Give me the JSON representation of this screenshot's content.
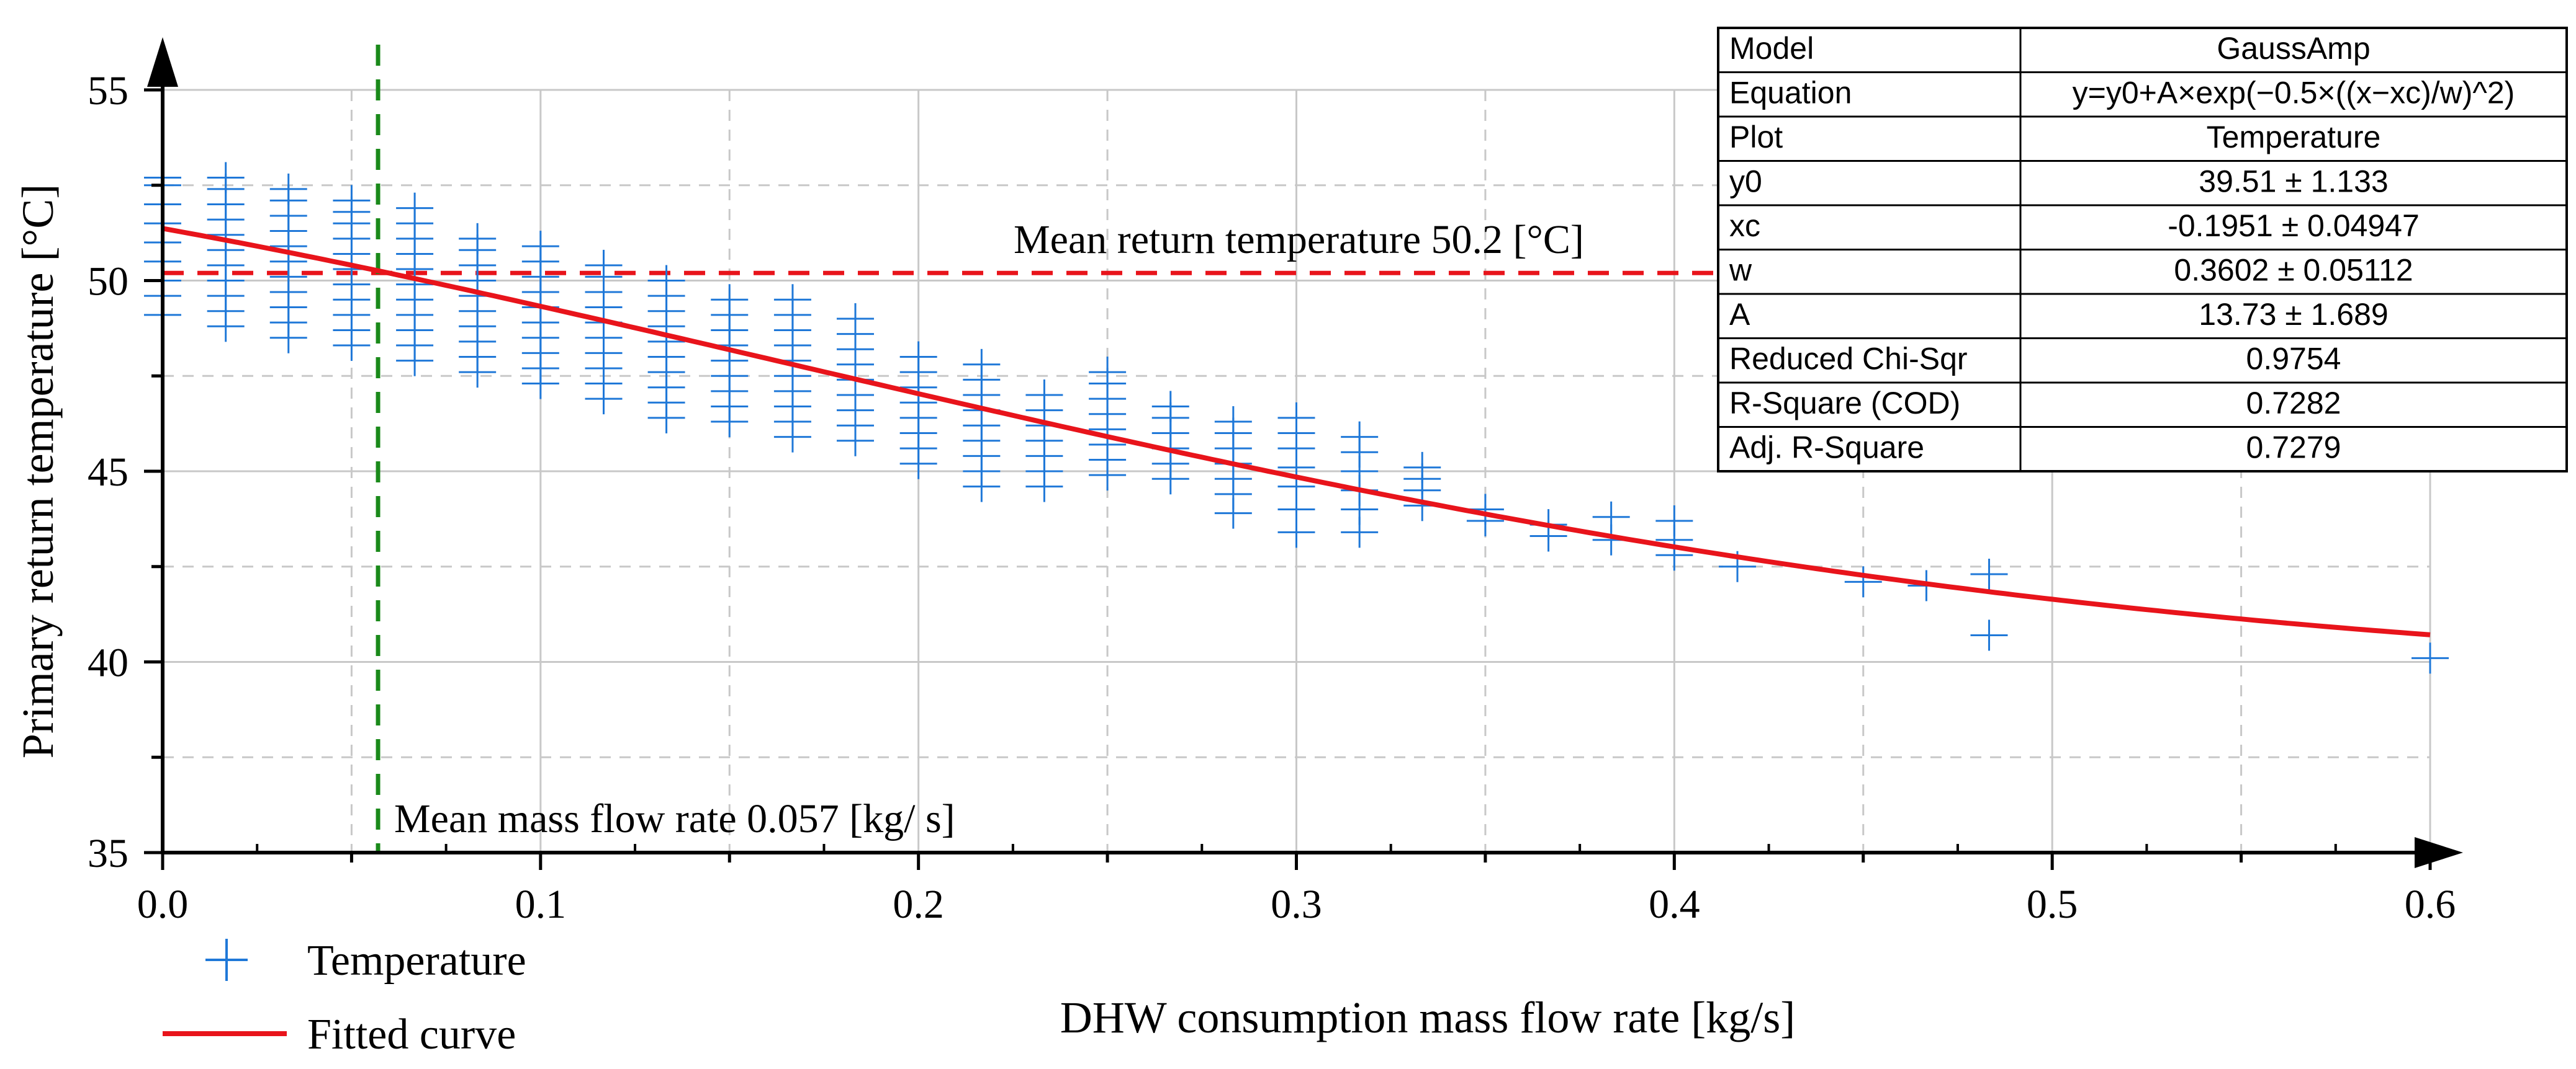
{
  "chart_data": {
    "type": "scatter",
    "xlabel": "DHW consumption mass flow rate [kg/s]",
    "ylabel": "Primary return temperature [°C]",
    "xlim": [
      0.0,
      0.6
    ],
    "ylim": [
      35,
      55
    ],
    "x_ticks": [
      "0.0",
      "0.1",
      "0.2",
      "0.3",
      "0.4",
      "0.5",
      "0.6"
    ],
    "y_ticks": [
      "35",
      "40",
      "45",
      "50",
      "55"
    ],
    "grid": true,
    "legend_position": "bottom-left",
    "series": [
      {
        "name": "Temperature",
        "kind": "scatter",
        "marker": "plus",
        "color": "#1f78d8",
        "points": [
          {
            "x": 0.0,
            "ys": [
              49.1,
              49.6,
              50.0,
              50.5,
              51.0,
              51.5,
              52.0,
              52.5,
              52.7
            ]
          },
          {
            "x": 0.0167,
            "ys": [
              48.8,
              49.2,
              49.6,
              50.0,
              50.4,
              50.8,
              51.2,
              51.6,
              52.0,
              52.4,
              52.7
            ]
          },
          {
            "x": 0.0333,
            "ys": [
              48.5,
              48.9,
              49.3,
              49.7,
              50.1,
              50.5,
              50.9,
              51.3,
              51.7,
              52.1,
              52.4
            ]
          },
          {
            "x": 0.05,
            "ys": [
              48.3,
              48.7,
              49.1,
              49.5,
              49.9,
              50.3,
              50.7,
              51.1,
              51.5,
              51.8,
              52.1
            ]
          },
          {
            "x": 0.0667,
            "ys": [
              47.9,
              48.3,
              48.7,
              49.1,
              49.5,
              49.9,
              50.3,
              50.7,
              51.1,
              51.5,
              51.9
            ]
          },
          {
            "x": 0.0833,
            "ys": [
              47.6,
              48.0,
              48.4,
              48.8,
              49.2,
              49.6,
              50.0,
              50.4,
              50.8,
              51.1
            ]
          },
          {
            "x": 0.1,
            "ys": [
              47.3,
              47.7,
              48.1,
              48.5,
              48.9,
              49.3,
              49.7,
              50.1,
              50.5,
              50.9
            ]
          },
          {
            "x": 0.1167,
            "ys": [
              46.9,
              47.3,
              47.7,
              48.1,
              48.5,
              48.9,
              49.3,
              49.7,
              50.1,
              50.4
            ]
          },
          {
            "x": 0.1333,
            "ys": [
              46.4,
              46.8,
              47.2,
              47.6,
              48.0,
              48.4,
              48.8,
              49.2,
              49.6,
              50.0
            ]
          },
          {
            "x": 0.15,
            "ys": [
              46.3,
              46.7,
              47.1,
              47.5,
              47.9,
              48.3,
              48.7,
              49.1,
              49.5
            ]
          },
          {
            "x": 0.1667,
            "ys": [
              45.9,
              46.3,
              46.7,
              47.1,
              47.5,
              47.9,
              48.3,
              48.7,
              49.1,
              49.5
            ]
          },
          {
            "x": 0.1833,
            "ys": [
              45.8,
              46.2,
              46.6,
              47.0,
              47.4,
              47.8,
              48.2,
              48.6,
              49.0
            ]
          },
          {
            "x": 0.2,
            "ys": [
              45.2,
              45.6,
              46.0,
              46.4,
              46.8,
              47.2,
              47.6,
              48.0
            ]
          },
          {
            "x": 0.2167,
            "ys": [
              44.6,
              45.0,
              45.4,
              45.8,
              46.2,
              46.6,
              47.0,
              47.4,
              47.8
            ]
          },
          {
            "x": 0.2333,
            "ys": [
              44.6,
              45.0,
              45.4,
              45.8,
              46.2,
              46.6,
              47.0
            ]
          },
          {
            "x": 0.25,
            "ys": [
              44.9,
              45.3,
              45.7,
              46.1,
              46.5,
              46.9,
              47.3,
              47.6
            ]
          },
          {
            "x": 0.2667,
            "ys": [
              44.8,
              45.2,
              45.6,
              46.0,
              46.4,
              46.7
            ]
          },
          {
            "x": 0.2833,
            "ys": [
              43.9,
              44.4,
              44.8,
              45.2,
              45.6,
              46.0,
              46.3
            ]
          },
          {
            "x": 0.3,
            "ys": [
              43.4,
              44.0,
              44.6,
              45.1,
              45.6,
              46.0,
              46.4
            ]
          },
          {
            "x": 0.3167,
            "ys": [
              43.4,
              44.0,
              44.5,
              45.0,
              45.5,
              45.9
            ]
          },
          {
            "x": 0.3333,
            "ys": [
              44.1,
              44.5,
              44.8,
              45.1
            ]
          },
          {
            "x": 0.35,
            "ys": [
              43.7,
              44.0
            ]
          },
          {
            "x": 0.3667,
            "ys": [
              43.3,
              43.6
            ]
          },
          {
            "x": 0.3833,
            "ys": [
              43.2,
              43.8
            ]
          },
          {
            "x": 0.4,
            "ys": [
              42.8,
              43.2,
              43.7
            ]
          },
          {
            "x": 0.4167,
            "ys": [
              42.5
            ]
          },
          {
            "x": 0.45,
            "ys": [
              42.1
            ]
          },
          {
            "x": 0.4667,
            "ys": [
              42.0
            ]
          },
          {
            "x": 0.4833,
            "ys": [
              40.7,
              42.3
            ]
          },
          {
            "x": 0.6,
            "ys": [
              40.1
            ]
          }
        ]
      },
      {
        "name": "Fitted curve",
        "kind": "line",
        "color": "#e8141b",
        "model": {
          "y0": 39.51,
          "xc": -0.1951,
          "w": 0.3602,
          "A": 13.73
        },
        "x_range": [
          0.0,
          0.6
        ]
      }
    ],
    "reference_lines": [
      {
        "orientation": "horizontal",
        "value": 50.2,
        "color": "#e8141b",
        "style": "dashed",
        "label": "Mean return temperature 50.2 [°C]"
      },
      {
        "orientation": "vertical",
        "value": 0.057,
        "color": "#1a8a1a",
        "style": "dashed",
        "label": "Mean mass flow rate 0.057 [kg/ s]"
      }
    ],
    "fit_table": [
      [
        "Model",
        "GaussAmp"
      ],
      [
        "Equation",
        "y=y0+A×exp(−0.5×((x−xc)/w)^2)"
      ],
      [
        "Plot",
        "Temperature"
      ],
      [
        "y0",
        "39.51 ± 1.133"
      ],
      [
        "xc",
        "-0.1951 ± 0.04947"
      ],
      [
        "w",
        "0.3602 ± 0.05112"
      ],
      [
        "A",
        "13.73 ± 1.689"
      ],
      [
        "Reduced Chi-Sqr",
        "0.9754"
      ],
      [
        "R-Square (COD)",
        "0.7282"
      ],
      [
        "Adj. R-Square",
        "0.7279"
      ]
    ]
  }
}
